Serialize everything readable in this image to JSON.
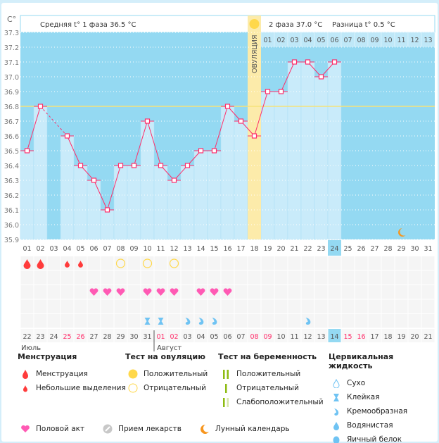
{
  "axis": {
    "unit": "C°",
    "ticks": [
      "37.3",
      "37.2",
      "37.1",
      "37.0",
      "36.9",
      "36.8",
      "36.7",
      "36.6",
      "36.5",
      "36.4",
      "36.3",
      "36.2",
      "36.1",
      "36.0",
      "35.9"
    ]
  },
  "header": {
    "phase1": "Средняя t° 1 фаза 36.5 °C",
    "phase2": "2 фаза 37.0 °C",
    "diff": "Разница t° 0.5 °C",
    "ovulation_label": "ОВУЛЯЦИЯ",
    "post_ovulation_days": [
      "01",
      "02",
      "03",
      "04",
      "05",
      "06",
      "07",
      "08",
      "09",
      "10",
      "11",
      "12",
      "13"
    ]
  },
  "chart_data": {
    "type": "line",
    "ylim": [
      35.9,
      37.3
    ],
    "coverline": 36.8,
    "ovulation_day": 18,
    "current_day": 24,
    "cycle_days": [
      "01",
      "02",
      "03",
      "04",
      "05",
      "06",
      "07",
      "08",
      "09",
      "10",
      "11",
      "12",
      "13",
      "14",
      "15",
      "16",
      "17",
      "18",
      "19",
      "20",
      "21",
      "22",
      "23",
      "24",
      "25",
      "26",
      "27",
      "28",
      "29",
      "30",
      "31"
    ],
    "temperatures": [
      36.5,
      36.8,
      null,
      36.6,
      36.4,
      36.3,
      36.1,
      36.4,
      36.4,
      36.7,
      36.4,
      36.3,
      36.4,
      36.5,
      36.5,
      36.8,
      36.7,
      36.6,
      36.9,
      36.9,
      37.1,
      37.1,
      37.0,
      37.1,
      null,
      null,
      null,
      null,
      null,
      null,
      null
    ],
    "moon_day": 29
  },
  "events": {
    "menstruation": {
      "1": "heavy",
      "2": "heavy",
      "4": "light",
      "5": "light"
    },
    "ovulation_test_negative": [
      8,
      10,
      12
    ],
    "intercourse": [
      6,
      7,
      8,
      10,
      11,
      12,
      14,
      15,
      16
    ],
    "cervical": {
      "10": "sticky",
      "11": "sticky",
      "13": "creamy",
      "14": "creamy",
      "15": "creamy",
      "22": "creamy"
    }
  },
  "calendar": {
    "dates": [
      "22",
      "23",
      "24",
      "25",
      "26",
      "27",
      "28",
      "29",
      "30",
      "31",
      "01",
      "02",
      "03",
      "04",
      "05",
      "06",
      "07",
      "08",
      "09",
      "10",
      "11",
      "12",
      "13",
      "14",
      "15",
      "16",
      "17",
      "18",
      "19",
      "20",
      "21"
    ],
    "weekend_indices": [
      3,
      4,
      10,
      11,
      17,
      18,
      24,
      25
    ],
    "today_index": 23,
    "month1": "Июль",
    "month2": "Август"
  },
  "legend": {
    "menstruation": {
      "title": "Менструация",
      "items": [
        "Менструация",
        "Небольшие выделения"
      ]
    },
    "ovulation_test": {
      "title": "Тест на овуляцию",
      "items": [
        "Положительный",
        "Отрицательный"
      ]
    },
    "pregnancy_test": {
      "title": "Тест на беременность",
      "items": [
        "Положительный",
        "Отрицательный",
        "Слабоположительный"
      ]
    },
    "cervical": {
      "title": "Цервикальная жидкость",
      "items": [
        "Сухо",
        "Клейкая",
        "Кремообразная",
        "Водянистая",
        "Яичный белок"
      ]
    },
    "other": [
      "Половой акт",
      "Прием лекарств",
      "Лунный календарь"
    ]
  },
  "colors": {
    "bg": "#94d9f2",
    "bar": "#c9ebfa",
    "line": "#ff2d6a",
    "ovulation": "#fcebaa",
    "coverline": "#f5e37a",
    "heart": "#ff5ab4",
    "drop": "#ff3b3b",
    "cervical": "#6fc3f3",
    "weekend": "#ff2d6a"
  }
}
